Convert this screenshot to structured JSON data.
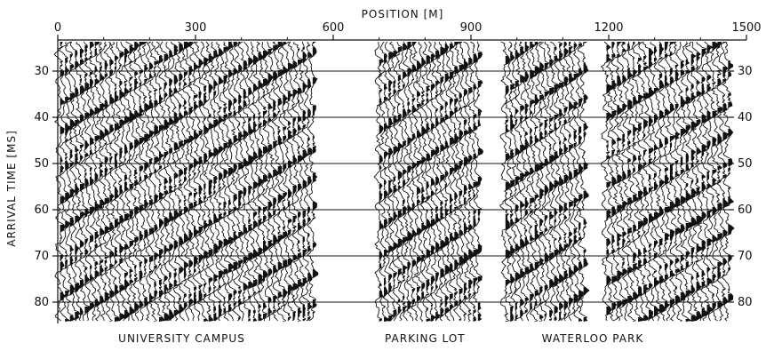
{
  "chart_data": {
    "type": "seismic-wiggle-section",
    "xlabel": "POSITION [M]",
    "ylabel": "ARRIVAL TIME [MS]",
    "xlim": [
      0,
      1500
    ],
    "ylim": [
      25,
      85
    ],
    "x_ticks": [
      0,
      300,
      600,
      900,
      1200,
      1500
    ],
    "y_ticks": [
      30,
      40,
      50,
      60,
      70,
      80
    ],
    "grid": "horizontal-at-y-ticks",
    "y_inverted": true,
    "sites": [
      {
        "name": "UNIVERSITY CAMPUS",
        "x_range": [
          5,
          555
        ],
        "trace_count": 52
      },
      {
        "name": "PARKING LOT",
        "x_range": [
          700,
          915
        ],
        "trace_count": 22
      },
      {
        "name": "WATERLOO PARK",
        "x_range": [
          975,
          1145
        ],
        "trace_count": 17
      },
      {
        "name": "WATERLOO PARK",
        "x_range": [
          1195,
          1460
        ],
        "trace_count": 24
      }
    ],
    "site_labels": [
      {
        "text": "UNIVERSITY CAMPUS",
        "x": 270
      },
      {
        "text": "PARKING LOT",
        "x": 800
      },
      {
        "text": "WATERLOO PARK",
        "x": 1165
      }
    ],
    "colors": {
      "ink": "#111111",
      "background": "#ffffff"
    }
  }
}
